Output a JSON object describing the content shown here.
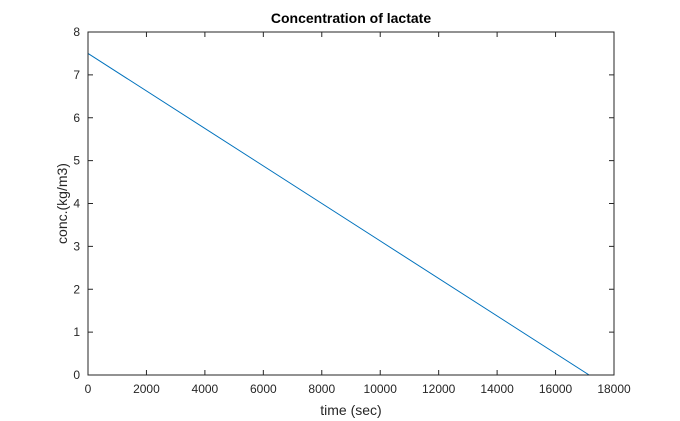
{
  "chart_data": {
    "type": "line",
    "title": "Concentration of lactate",
    "xlabel": "time (sec)",
    "ylabel": "conc.(kg/m3)",
    "xlim": [
      0,
      18000
    ],
    "ylim": [
      0,
      8
    ],
    "xticks": [
      0,
      2000,
      4000,
      6000,
      8000,
      10000,
      12000,
      14000,
      16000,
      18000
    ],
    "yticks": [
      0,
      1,
      2,
      3,
      4,
      5,
      6,
      7,
      8
    ],
    "grid": false,
    "series": [
      {
        "color": "#0072BD",
        "x": [
          0,
          17150,
          18000
        ],
        "y": [
          7.5,
          0,
          0
        ]
      }
    ]
  }
}
